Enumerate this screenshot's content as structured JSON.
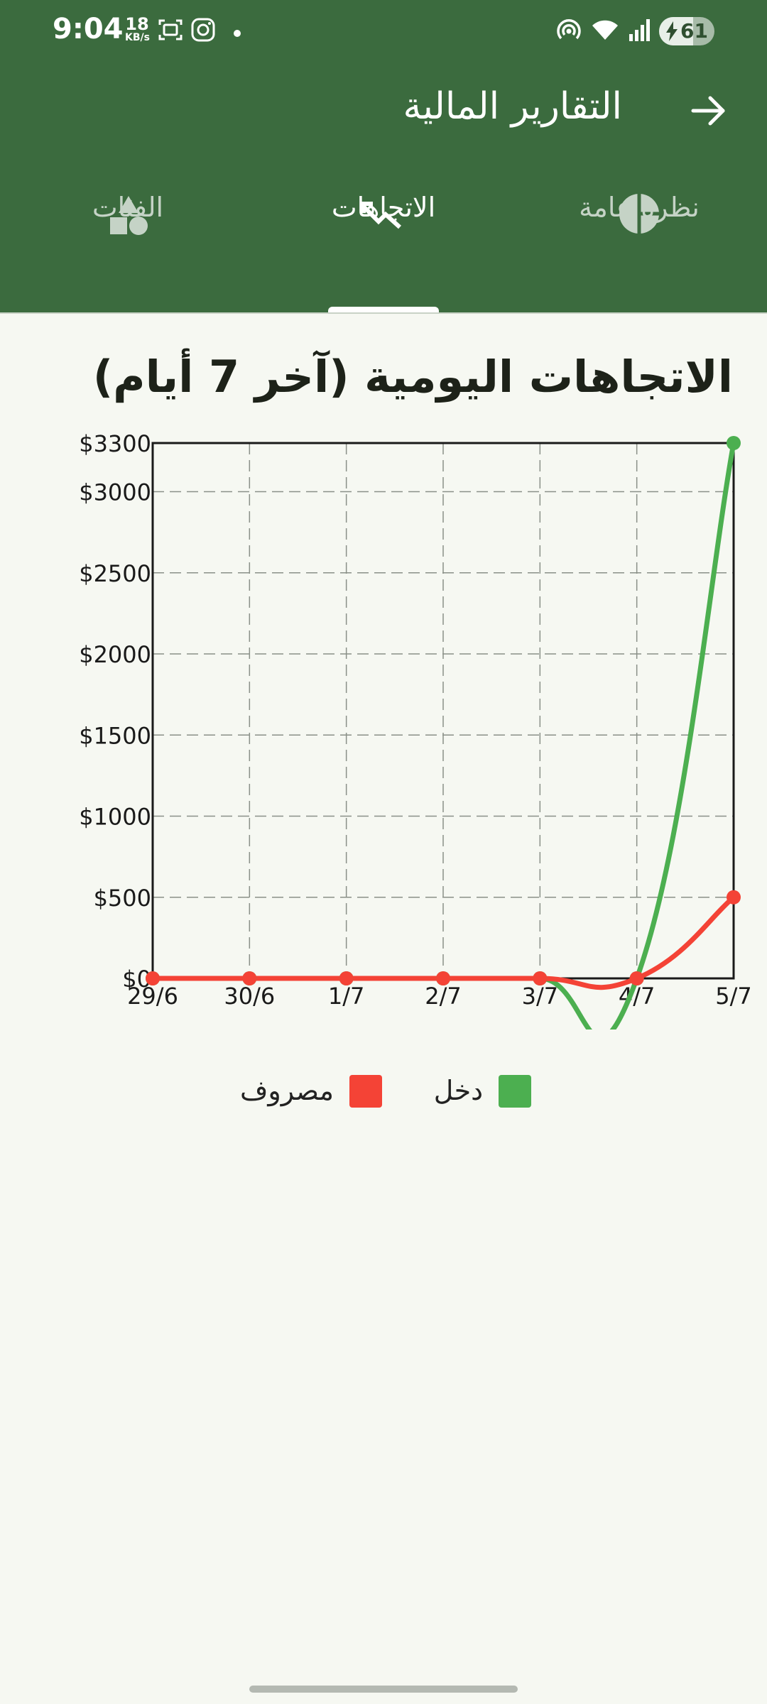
{
  "status_bar": {
    "time": "9:04",
    "net_speed_value": "18",
    "net_speed_unit": "KB/s",
    "battery_level": "61",
    "icons": [
      "screenshot-icon",
      "instagram-icon",
      "dot-icon",
      "hotspot-icon",
      "wifi-icon",
      "signal-icon",
      "battery-icon"
    ]
  },
  "header": {
    "title": "التقارير المالية",
    "back_icon": "arrow-forward-icon"
  },
  "tabs": [
    {
      "label": "نظرة عامة",
      "icon": "pie-chart-icon",
      "active": false
    },
    {
      "label": "الاتجاهات",
      "icon": "trending-icon",
      "active": true
    },
    {
      "label": "الفئات",
      "icon": "shapes-icon",
      "active": false
    }
  ],
  "chart_title": "الاتجاهات اليومية (آخر 7 أيام)",
  "chart_data": {
    "type": "line",
    "x": [
      "29/6",
      "30/6",
      "1/7",
      "2/7",
      "3/7",
      "4/7",
      "5/7"
    ],
    "series": [
      {
        "name": "دخل",
        "color": "#4caf50",
        "values": [
          0,
          0,
          0,
          0,
          0,
          0,
          3300
        ]
      },
      {
        "name": "مصروف",
        "color": "#f44336",
        "values": [
          0,
          0,
          0,
          0,
          0,
          0,
          500
        ]
      }
    ],
    "yticks": [
      0,
      500,
      1000,
      1500,
      2000,
      2500,
      3000,
      3300
    ],
    "ytick_labels": [
      "$0",
      "$500",
      "$1000",
      "$1500",
      "$2000",
      "$2500",
      "$3000",
      "$3300"
    ],
    "ylim": [
      0,
      3300
    ],
    "grid": true,
    "smooth": true,
    "legend_position": "bottom"
  },
  "colors": {
    "app_bar": "#3b6b3e",
    "background": "#f6f8f2",
    "income": "#4caf50",
    "expense": "#f44336"
  }
}
